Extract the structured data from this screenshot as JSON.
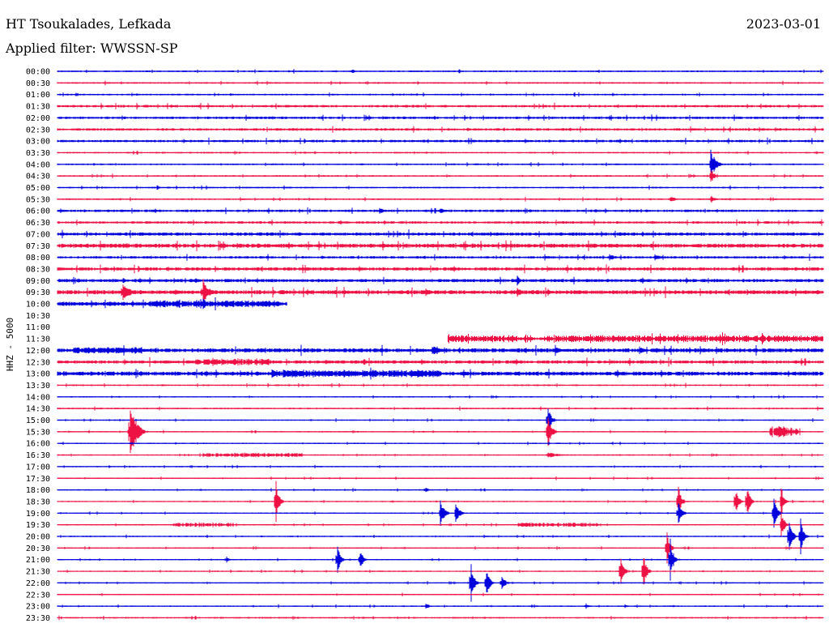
{
  "header": {
    "station": "HT Tsoukalades, Lefkada",
    "date": "2023-03-01",
    "filter": "Applied filter: WWSSN-SP"
  },
  "chart_data": {
    "type": "line",
    "title": "HT Tsoukalades, Lefkada",
    "ylabel": "HHZ - 5000",
    "colors": [
      "#0000dd",
      "#ee1144"
    ],
    "rows": [
      "00:00",
      "00:30",
      "01:00",
      "01:30",
      "02:00",
      "02:30",
      "03:00",
      "03:30",
      "04:00",
      "04:30",
      "05:00",
      "05:30",
      "06:00",
      "06:30",
      "07:00",
      "07:30",
      "08:00",
      "08:30",
      "09:00",
      "09:30",
      "10:00",
      "10:30",
      "11:00",
      "11:30",
      "12:00",
      "12:30",
      "13:00",
      "13:30",
      "14:00",
      "14:30",
      "15:00",
      "15:30",
      "16:00",
      "16:30",
      "17:00",
      "17:30",
      "18:00",
      "18:30",
      "19:00",
      "19:30",
      "20:00",
      "20:30",
      "21:00",
      "21:30",
      "22:00",
      "22:30",
      "23:00",
      "23:30"
    ],
    "noise": [
      1,
      1,
      1,
      1.5,
      1.5,
      1.5,
      1.5,
      1,
      1,
      1,
      1,
      1,
      1.5,
      1.5,
      2,
      2.5,
      1.5,
      2,
      2,
      2.5,
      2.5,
      0,
      0,
      2,
      2.5,
      2,
      2.5,
      1,
      0.8,
      1,
      0.8,
      0.8,
      0.8,
      0.8,
      0.8,
      0.8,
      0.8,
      0.8,
      0.8,
      0.8,
      0.8,
      0.8,
      0.8,
      0.8,
      0.8,
      0.8,
      0.8,
      1
    ],
    "coverage": [
      [
        0,
        1
      ],
      [
        0,
        1
      ],
      [
        0,
        1
      ],
      [
        0,
        1
      ],
      [
        0,
        1
      ],
      [
        0,
        1
      ],
      [
        0,
        1
      ],
      [
        0,
        1
      ],
      [
        0,
        1
      ],
      [
        0,
        1
      ],
      [
        0,
        1
      ],
      [
        0,
        1
      ],
      [
        0,
        1
      ],
      [
        0,
        1
      ],
      [
        0,
        1
      ],
      [
        0,
        1
      ],
      [
        0,
        1
      ],
      [
        0,
        1
      ],
      [
        0,
        1
      ],
      [
        0,
        1
      ],
      [
        0,
        0.3
      ],
      [
        0,
        0
      ],
      [
        0,
        0
      ],
      [
        0.51,
        1
      ],
      [
        0,
        1
      ],
      [
        0,
        1
      ],
      [
        0,
        1
      ],
      [
        0,
        1
      ],
      [
        0,
        1
      ],
      [
        0,
        1
      ],
      [
        0,
        1
      ],
      [
        0,
        1
      ],
      [
        0,
        1
      ],
      [
        0,
        1
      ],
      [
        0,
        1
      ],
      [
        0,
        1
      ],
      [
        0,
        1
      ],
      [
        0,
        1
      ],
      [
        0,
        1
      ],
      [
        0,
        1
      ],
      [
        0,
        1
      ],
      [
        0,
        1
      ],
      [
        0,
        1
      ],
      [
        0,
        1
      ],
      [
        0,
        1
      ],
      [
        0,
        1
      ],
      [
        0,
        1
      ],
      [
        0,
        1
      ]
    ],
    "events": [
      {
        "row": 0,
        "t": 0.384,
        "amp": 4,
        "dur": 0.01
      },
      {
        "row": 1,
        "t": 0.47,
        "amp": 2,
        "dur": 0.01
      },
      {
        "row": 1,
        "t": 0.84,
        "amp": 2,
        "dur": 0.01
      },
      {
        "row": 6,
        "t": 0.74,
        "amp": 3,
        "dur": 0.01
      },
      {
        "row": 8,
        "t": 0.853,
        "amp": 22,
        "dur": 0.015
      },
      {
        "row": 9,
        "t": 0.853,
        "amp": 10,
        "dur": 0.012
      },
      {
        "row": 10,
        "t": 0.13,
        "amp": 4,
        "dur": 0.008
      },
      {
        "row": 11,
        "t": 0.8,
        "amp": 4,
        "dur": 0.02
      },
      {
        "row": 11,
        "t": 0.853,
        "amp": 5,
        "dur": 0.015
      },
      {
        "row": 12,
        "t": 0.42,
        "amp": 4,
        "dur": 0.02
      },
      {
        "row": 12,
        "t": 0.5,
        "amp": 4,
        "dur": 0.02
      },
      {
        "row": 16,
        "t": 0.72,
        "amp": 5,
        "dur": 0.02
      },
      {
        "row": 16,
        "t": 0.78,
        "amp": 4,
        "dur": 0.03
      },
      {
        "row": 18,
        "t": 0.085,
        "amp": 6,
        "dur": 0.01
      },
      {
        "row": 18,
        "t": 0.18,
        "amp": 6,
        "dur": 0.01
      },
      {
        "row": 18,
        "t": 0.6,
        "amp": 8,
        "dur": 0.01
      },
      {
        "row": 18,
        "t": 0.98,
        "amp": 4,
        "dur": 0.01
      },
      {
        "row": 19,
        "t": 0.085,
        "amp": 16,
        "dur": 0.02
      },
      {
        "row": 19,
        "t": 0.19,
        "amp": 18,
        "dur": 0.02
      },
      {
        "row": 19,
        "t": 0.48,
        "amp": 6,
        "dur": 0.02
      },
      {
        "row": 19,
        "t": 0.6,
        "amp": 6,
        "dur": 0.02
      },
      {
        "row": 19,
        "t": 0.64,
        "amp": 5,
        "dur": 0.02
      },
      {
        "row": 20,
        "t": 0.19,
        "amp": 8,
        "dur": 0.015
      },
      {
        "row": 23,
        "t": 0.59,
        "amp": 3,
        "dur": 0.01
      },
      {
        "row": 23,
        "t": 0.64,
        "amp": 5,
        "dur": 0.02
      },
      {
        "row": 23,
        "t": 0.86,
        "amp": 4,
        "dur": 0.03
      },
      {
        "row": 23,
        "t": 0.94,
        "amp": 5,
        "dur": 0.02
      },
      {
        "row": 24,
        "t": 0.49,
        "amp": 6,
        "dur": 0.03
      },
      {
        "row": 24,
        "t": 0.65,
        "amp": 7,
        "dur": 0.015
      },
      {
        "row": 24,
        "t": 0.76,
        "amp": 5,
        "dur": 0.02
      },
      {
        "row": 25,
        "t": 0.35,
        "amp": 4,
        "dur": 0.01
      },
      {
        "row": 25,
        "t": 0.4,
        "amp": 5,
        "dur": 0.01
      },
      {
        "row": 26,
        "t": 0.28,
        "amp": 7,
        "dur": 0.02
      },
      {
        "row": 26,
        "t": 0.47,
        "amp": 8,
        "dur": 0.015
      },
      {
        "row": 28,
        "t": 0.08,
        "amp": 2,
        "dur": 0.01
      },
      {
        "row": 30,
        "t": 0.64,
        "amp": 18,
        "dur": 0.012
      },
      {
        "row": 31,
        "t": 0.095,
        "amp": 40,
        "dur": 0.02
      },
      {
        "row": 31,
        "t": 0.64,
        "amp": 25,
        "dur": 0.012
      },
      {
        "row": 31,
        "t": 0.94,
        "amp": 8,
        "dur": 0.04
      },
      {
        "row": 33,
        "t": 0.64,
        "amp": 4,
        "dur": 0.04
      },
      {
        "row": 36,
        "t": 0.48,
        "amp": 5,
        "dur": 0.01
      },
      {
        "row": 37,
        "t": 0.285,
        "amp": 32,
        "dur": 0.01
      },
      {
        "row": 37,
        "t": 0.81,
        "amp": 25,
        "dur": 0.01
      },
      {
        "row": 37,
        "t": 0.885,
        "amp": 22,
        "dur": 0.01
      },
      {
        "row": 37,
        "t": 0.9,
        "amp": 25,
        "dur": 0.01
      },
      {
        "row": 37,
        "t": 0.945,
        "amp": 20,
        "dur": 0.01
      },
      {
        "row": 38,
        "t": 0.5,
        "amp": 20,
        "dur": 0.012
      },
      {
        "row": 38,
        "t": 0.52,
        "amp": 16,
        "dur": 0.012
      },
      {
        "row": 38,
        "t": 0.81,
        "amp": 18,
        "dur": 0.012
      },
      {
        "row": 38,
        "t": 0.935,
        "amp": 24,
        "dur": 0.01
      },
      {
        "row": 39,
        "t": 0.945,
        "amp": 20,
        "dur": 0.01
      },
      {
        "row": 40,
        "t": 0.955,
        "amp": 28,
        "dur": 0.01
      },
      {
        "row": 40,
        "t": 0.97,
        "amp": 26,
        "dur": 0.01
      },
      {
        "row": 41,
        "t": 0.795,
        "amp": 30,
        "dur": 0.01
      },
      {
        "row": 42,
        "t": 0.22,
        "amp": 5,
        "dur": 0.01
      },
      {
        "row": 42,
        "t": 0.365,
        "amp": 22,
        "dur": 0.01
      },
      {
        "row": 42,
        "t": 0.395,
        "amp": 14,
        "dur": 0.01
      },
      {
        "row": 42,
        "t": 0.8,
        "amp": 28,
        "dur": 0.01
      },
      {
        "row": 43,
        "t": 0.735,
        "amp": 30,
        "dur": 0.01
      },
      {
        "row": 43,
        "t": 0.765,
        "amp": 24,
        "dur": 0.01
      },
      {
        "row": 44,
        "t": 0.54,
        "amp": 26,
        "dur": 0.01
      },
      {
        "row": 44,
        "t": 0.56,
        "amp": 22,
        "dur": 0.01
      },
      {
        "row": 44,
        "t": 0.58,
        "amp": 8,
        "dur": 0.015
      },
      {
        "row": 46,
        "t": 0.48,
        "amp": 4,
        "dur": 0.015
      },
      {
        "row": 46,
        "t": 0.69,
        "amp": 4,
        "dur": 0.01
      },
      {
        "row": 46,
        "t": 0.74,
        "amp": 4,
        "dur": 0.01
      }
    ],
    "bursts": [
      {
        "row": 24,
        "t0": 0.02,
        "t1": 0.11,
        "amp": 2
      },
      {
        "row": 26,
        "t0": 0.28,
        "t1": 0.5,
        "amp": 2.5
      },
      {
        "row": 20,
        "t0": 0.12,
        "t1": 0.29,
        "amp": 2
      },
      {
        "row": 23,
        "t0": 0.51,
        "t1": 0.6,
        "amp": 2.5
      },
      {
        "row": 23,
        "t0": 0.65,
        "t1": 1,
        "amp": 2.5
      },
      {
        "row": 33,
        "t0": 0.19,
        "t1": 0.32,
        "amp": 2
      },
      {
        "row": 39,
        "t0": 0.15,
        "t1": 0.23,
        "amp": 2
      },
      {
        "row": 39,
        "t0": 0.6,
        "t1": 0.71,
        "amp": 2
      },
      {
        "row": 25,
        "t0": 0.18,
        "t1": 0.28,
        "amp": 2.5
      },
      {
        "row": 31,
        "t0": 0.93,
        "t1": 0.97,
        "amp": 6
      }
    ]
  }
}
